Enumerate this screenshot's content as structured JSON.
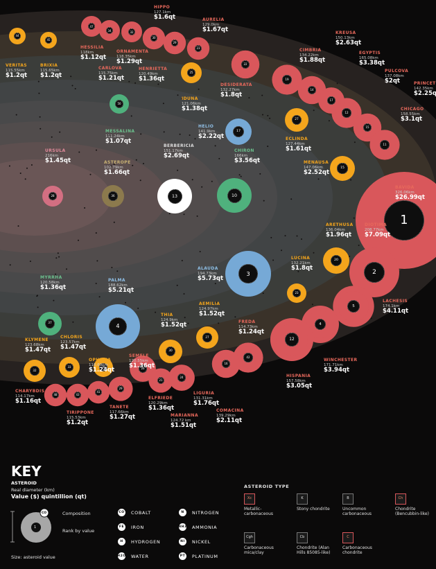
{
  "colors": {
    "red": "#d9575b",
    "orange": "#f4a51c",
    "green": "#4fb17d",
    "blue": "#76a9d6",
    "pink": "#d36f82",
    "olive": "#8c7a4d",
    "white": "#ffffff",
    "background": "#0b0a0a"
  },
  "asteroids": [
    {
      "id": "veritas",
      "name": "VERITAS",
      "diameter": "115.55km",
      "value": "$1.2qt",
      "rank": "44"
    },
    {
      "id": "brixia",
      "name": "BRIXIA",
      "diameter": "115.65km",
      "value": "$1.2qt",
      "rank": "45"
    },
    {
      "id": "hessilia",
      "name": "HESSILIA",
      "diameter": "118km",
      "value": "$1.12qt",
      "rank": "47"
    },
    {
      "id": "carlova",
      "name": "CARLOVA",
      "diameter": "115.75km",
      "value": "$1.21qt",
      "rank": "34"
    },
    {
      "id": "ornamenta",
      "name": "ORNAMENTA",
      "diameter": "118.35km",
      "value": "$1.29qt",
      "rank": "32"
    },
    {
      "id": "henrietta",
      "name": "HENRIETTA",
      "diameter": "120.49km",
      "value": "$1.36qt",
      "rank": "30"
    },
    {
      "id": "hippo",
      "name": "HIPPO",
      "diameter": "127.1km",
      "value": "$1.6qt",
      "rank": "29"
    },
    {
      "id": "aurelia",
      "name": "AURELIA",
      "diameter": "129.0km",
      "value": "$1.67qt",
      "rank": "23"
    },
    {
      "id": "iduna",
      "name": "IDUNA",
      "diameter": "121.06km",
      "value": "$1.38qt",
      "rank": "25"
    },
    {
      "id": "desiderata",
      "name": "DESIDERATA",
      "diameter": "132.27km",
      "value": "$1.8qt",
      "rank": "22"
    },
    {
      "id": "cimbria",
      "name": "CIMBRIA",
      "diameter": "134.22km",
      "value": "$1.88qt",
      "rank": "19"
    },
    {
      "id": "kreusa",
      "name": "KREUSA",
      "diameter": "150.13km",
      "value": "$2.63qt",
      "rank": "14"
    },
    {
      "id": "egyptis",
      "name": "EGYPTIS",
      "diameter": "165.08km",
      "value": "$3.38qt",
      "rank": "12"
    },
    {
      "id": "pulcova",
      "name": "PULCOVA",
      "diameter": "137.08km",
      "value": "$2qt",
      "rank": "17"
    },
    {
      "id": "princetonia",
      "name": "PRINCETONIA",
      "diameter": "142.35km",
      "value": "$2.25qt",
      "rank": "15"
    },
    {
      "id": "chicago",
      "name": "CHICAGO",
      "diameter": "158.55km",
      "value": "$3.1qt",
      "rank": "11"
    },
    {
      "id": "messalina",
      "name": "MESSALINA",
      "diameter": "111.24km",
      "value": "$1.07qt",
      "rank": "50"
    },
    {
      "id": "helio",
      "name": "HELIO",
      "diameter": "141.9km",
      "value": "$2.22qt",
      "rank": "17"
    },
    {
      "id": "chiron",
      "name": "CHIRON",
      "diameter": "166km",
      "value": "$3.56qt",
      "rank": "10"
    },
    {
      "id": "eclinda",
      "name": "ECLINDA",
      "diameter": "127.44km",
      "value": "$1.61qt",
      "rank": "27"
    },
    {
      "id": "menausa",
      "name": "MENAUSA",
      "diameter": "147.06km",
      "value": "$2.52qt",
      "rank": "15"
    },
    {
      "id": "ursula",
      "name": "URSULA",
      "diameter": "216km",
      "value": "$1.45qt",
      "rank": "28"
    },
    {
      "id": "asterope",
      "name": "ASTEROPE",
      "diameter": "102.79km",
      "value": "$1.66qt",
      "rank": "36"
    },
    {
      "id": "berbericia",
      "name": "BERBERICIA",
      "diameter": "151.17km",
      "value": "$2.69qt",
      "rank": "13"
    },
    {
      "id": "bavida",
      "name": "BAVIDA",
      "diameter": "326.06km",
      "value": "$26.99qt",
      "rank": "1"
    },
    {
      "id": "diotima",
      "name": "DIOTIMA",
      "diameter": "208.77km",
      "value": "$7.09qt",
      "rank": "2"
    },
    {
      "id": "arethusa",
      "name": "ARETHUSA",
      "diameter": "136.04km",
      "value": "$1.96qt",
      "rank": "20"
    },
    {
      "id": "lucina",
      "name": "LUCINA",
      "diameter": "132.21km",
      "value": "$1.8qt",
      "rank": "23"
    },
    {
      "id": "alauda",
      "name": "ALAUDA",
      "diameter": "194.73km",
      "value": "$5.73qt",
      "rank": "3"
    },
    {
      "id": "lachesis",
      "name": "LACHESIS",
      "diameter": "174.1km",
      "value": "$4.11qt",
      "rank": "5"
    },
    {
      "id": "myrrha",
      "name": "MYRRHA",
      "diameter": "120.58km",
      "value": "$1.36qt",
      "rank": "37"
    },
    {
      "id": "palma",
      "name": "PALMA",
      "diameter": "188.62km",
      "value": "$5.21qt",
      "rank": "4"
    },
    {
      "id": "thia",
      "name": "THIA",
      "diameter": "124.9km",
      "value": "$1.52qt",
      "rank": "30"
    },
    {
      "id": "aemilia",
      "name": "AEMILIA",
      "diameter": "124.97km",
      "value": "$1.52qt",
      "rank": "27"
    },
    {
      "id": "freda",
      "name": "FREDA",
      "diameter": "114.73km",
      "value": "$1.24qt",
      "rank": "42"
    },
    {
      "id": "winchester",
      "name": "WINCHESTER",
      "diameter": "171.71km",
      "value": "$3.94qt",
      "rank": "4"
    },
    {
      "id": "hispania",
      "name": "HISPANIA",
      "diameter": "157.58km",
      "value": "$3.05qt",
      "rank": "12"
    },
    {
      "id": "klymene",
      "name": "KLYMENE",
      "diameter": "123.68km",
      "value": "$1.47qt",
      "rank": "32"
    },
    {
      "id": "chloris",
      "name": "CHLORIS",
      "diameter": "123.57km",
      "value": "$1.47qt",
      "rank": "33"
    },
    {
      "id": "ophelia",
      "name": "OPHELIA",
      "diameter": "116.69km",
      "value": "$1.24qt",
      "rank": "28"
    },
    {
      "id": "semele",
      "name": "SEMELE",
      "diameter": "120.55km",
      "value": "$1.36qt",
      "rank": "26"
    },
    {
      "id": "charybdis",
      "name": "CHARYBDIS",
      "diameter": "114.17km",
      "value": "$1.16qt",
      "rank": "48"
    },
    {
      "id": "tirippone",
      "name": "TIRIPPONE",
      "diameter": "115.53km",
      "value": "$1.2qt",
      "rank": "43"
    },
    {
      "id": "tanete",
      "name": "TANETE",
      "diameter": "117.66km",
      "value": "$1.27qt",
      "rank": "41"
    },
    {
      "id": "elfriede",
      "name": "ELFRIEDE",
      "diameter": "120.29km",
      "value": "$1.36qt",
      "rank": "29"
    },
    {
      "id": "marianna",
      "name": "MARIANNA",
      "diameter": "124.72 km",
      "value": "$1.51qt",
      "rank": "21"
    },
    {
      "id": "liguria",
      "name": "LIGURIA",
      "diameter": "131.31km",
      "value": "$1.76qt",
      "rank": "24"
    },
    {
      "id": "comacina",
      "name": "COMACINA",
      "diameter": "139.29km",
      "value": "$2.11qt",
      "rank": "16"
    }
  ],
  "key": {
    "title": "KEY",
    "asteroid_heading": "ASTEROID",
    "real_diameter": "Real diameter (km)",
    "value_line": "Value ($) quintillion (qt)",
    "composition": "Composition",
    "rank": "Rank by value",
    "size_note": "Size: asteroid value",
    "sample_rank": "1",
    "sample_tag": "CO",
    "elements": [
      {
        "abbr": "CO",
        "label": "COBALT"
      },
      {
        "abbr": "FE",
        "label": "IRON"
      },
      {
        "abbr": "H",
        "label": "HYDROGEN"
      },
      {
        "abbr": "H2O",
        "label": "WATER"
      },
      {
        "abbr": "N",
        "label": "NITROGEN"
      },
      {
        "abbr": "NH3",
        "label": "AMMONIA"
      },
      {
        "abbr": "NI",
        "label": "NICKEL"
      },
      {
        "abbr": "PT",
        "label": "PLATINUM"
      }
    ],
    "type_heading": "ASTEROID TYPE",
    "types": [
      {
        "code": "Xc",
        "label": "Metallic-carbonaceous"
      },
      {
        "code": "K",
        "label": "Stony chondrite"
      },
      {
        "code": "B",
        "label": "Uncommon carbonaceous"
      },
      {
        "code": "Ch",
        "label": "Chondrite (Bencubbin-like)"
      },
      {
        "code": "Cgh",
        "label": "Carbonaceous mica/clay"
      },
      {
        "code": "Cb",
        "label": "Chondrite (Alan Hills 85085-like)"
      },
      {
        "code": "C",
        "label": "Carbonaceous chondrite"
      }
    ]
  }
}
